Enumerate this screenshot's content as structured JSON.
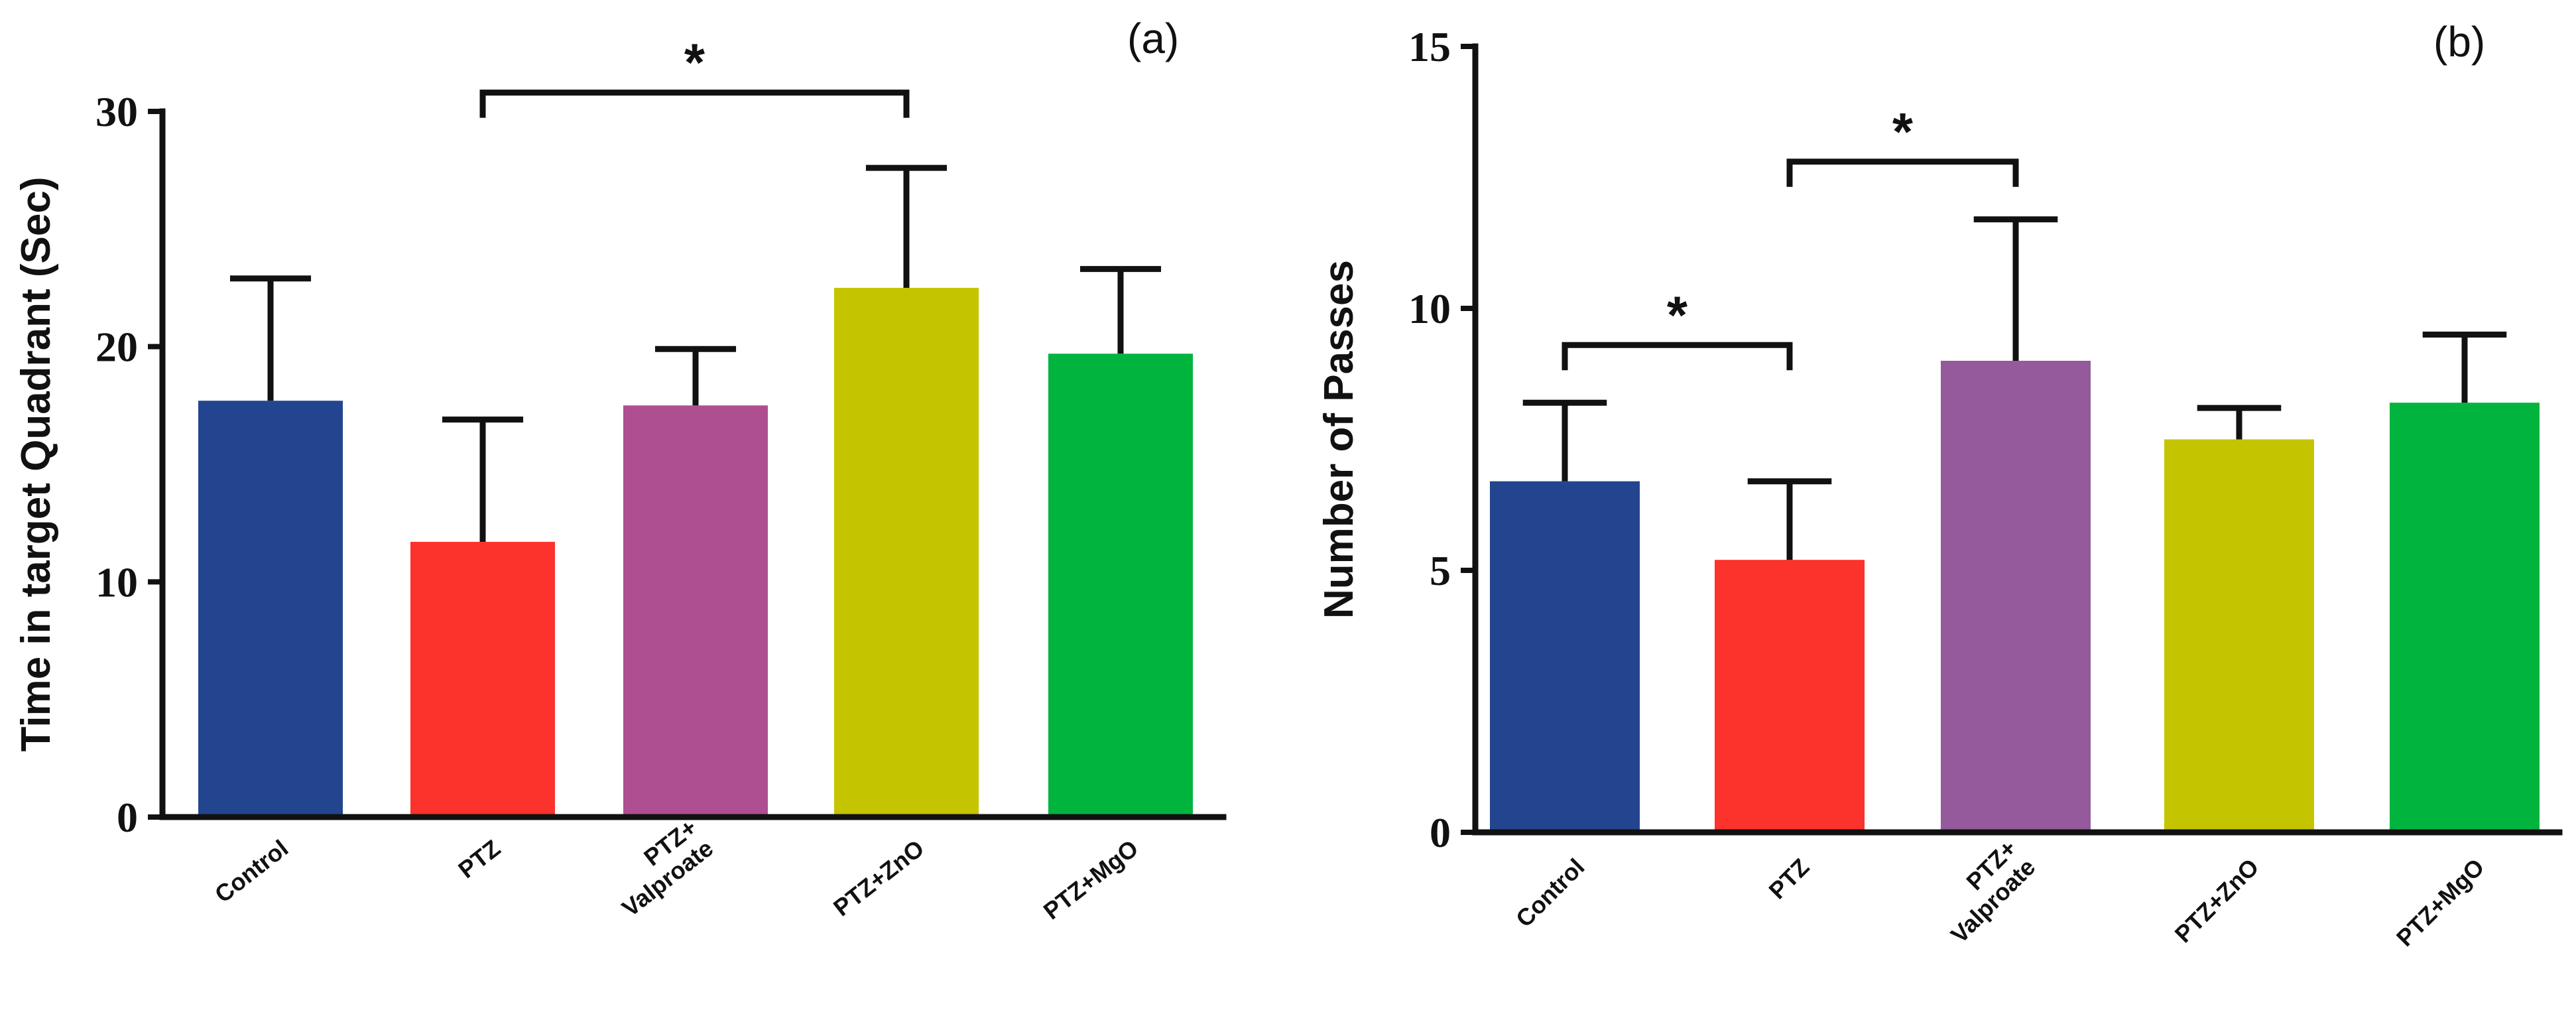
{
  "chart_data": [
    {
      "panel_label": "(a)",
      "type": "bar",
      "title": "",
      "xlabel": "",
      "ylabel": "Time in target Quadrant (Sec)",
      "ylim": [
        0,
        30
      ],
      "yticks": [
        0,
        10,
        20,
        30
      ],
      "categories": [
        [
          "Control"
        ],
        [
          "PTZ"
        ],
        [
          "PTZ+",
          "Valproate"
        ],
        [
          "PTZ+ZnO"
        ],
        [
          "PTZ+MgO"
        ]
      ],
      "values": [
        17.7,
        11.7,
        17.5,
        22.5,
        19.7
      ],
      "errors": [
        5.2,
        5.2,
        2.4,
        5.1,
        3.6
      ],
      "colors": [
        "#23458f",
        "#fc322c",
        "#ae4f91",
        "#c4c400",
        "#00b43e"
      ],
      "significance": [
        {
          "from": 1,
          "to": 3,
          "label": "*",
          "bracket_y": 30.8
        }
      ]
    },
    {
      "panel_label": "(b)",
      "type": "bar",
      "title": "",
      "xlabel": "",
      "ylabel": "Number of Passes",
      "ylim": [
        0,
        15
      ],
      "yticks": [
        0,
        5,
        10,
        15
      ],
      "categories": [
        [
          "Control"
        ],
        [
          "PTZ"
        ],
        [
          "PTZ+",
          "Valproate"
        ],
        [
          "PTZ+ZnO"
        ],
        [
          "PTZ+MgO"
        ]
      ],
      "values": [
        6.7,
        5.2,
        9.0,
        7.5,
        8.2
      ],
      "errors": [
        1.5,
        1.5,
        2.7,
        0.6,
        1.3
      ],
      "colors": [
        "#23458f",
        "#fc322c",
        "#955a9c",
        "#c4c400",
        "#00b43e"
      ],
      "significance": [
        {
          "from": 0,
          "to": 1,
          "label": "*",
          "bracket_y": 9.3
        },
        {
          "from": 1,
          "to": 2,
          "label": "*",
          "bracket_y": 12.8
        }
      ]
    }
  ]
}
